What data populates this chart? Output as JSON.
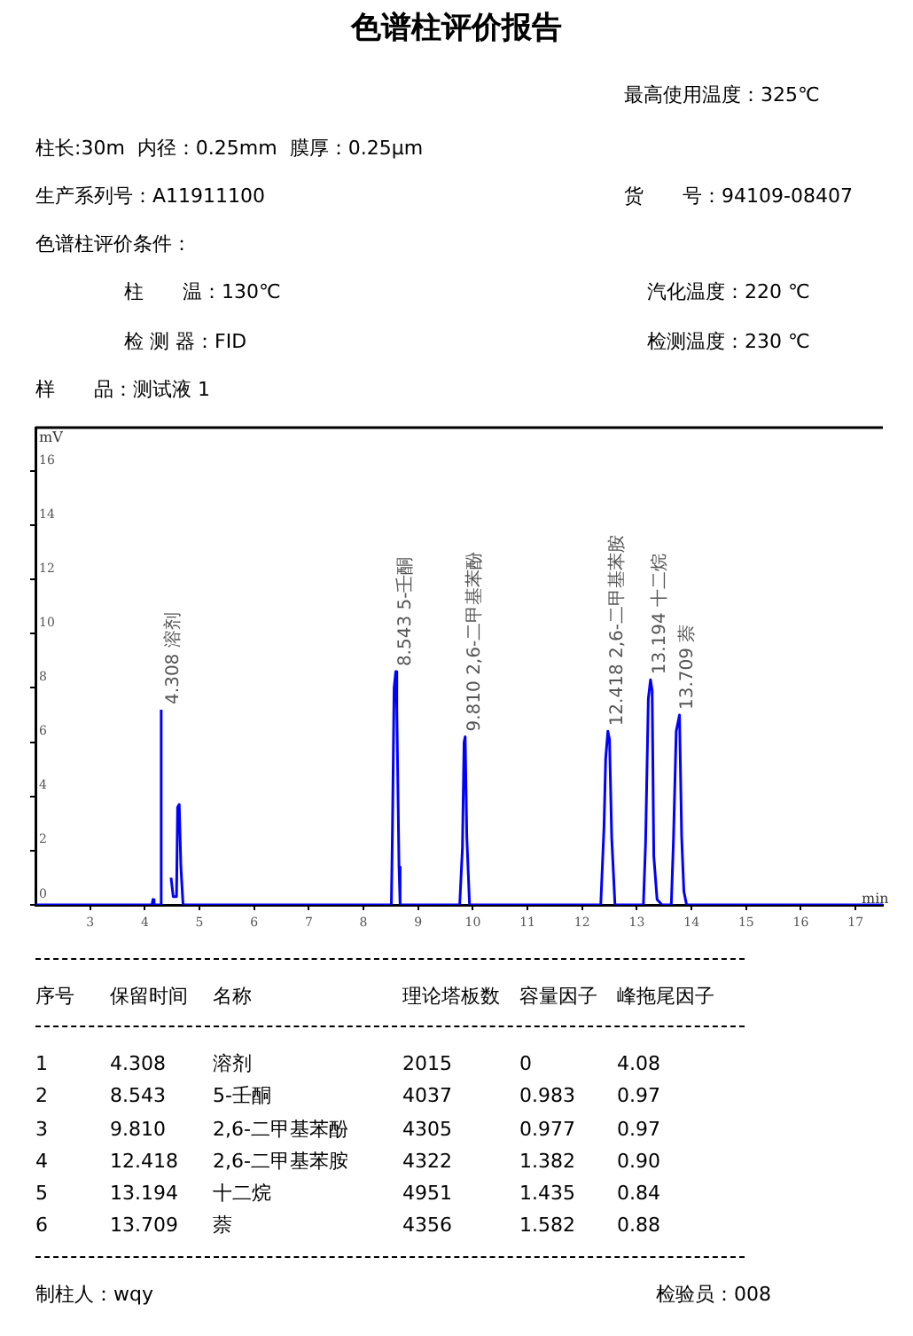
{
  "chart_data": {
    "type": "line",
    "title": "色谱柱评价报告",
    "xlabel": "min",
    "ylabel": "mV",
    "xlim": [
      2,
      17.5
    ],
    "xticks": [
      3,
      4,
      5,
      6,
      7,
      8,
      9,
      10,
      11,
      12,
      13,
      14,
      15,
      16,
      17
    ],
    "ylim": [
      0,
      17.6
    ],
    "yticks": [
      0,
      2,
      4,
      6,
      8,
      10,
      12,
      14,
      16
    ],
    "grid": false,
    "legend": false,
    "marker": "none",
    "line_style": "solid",
    "series": [
      {
        "color": "#0000ff",
        "x": [
          2,
          4.13,
          4.15,
          4.17,
          4.29,
          4.3,
          4.33,
          4.47,
          4.48,
          4.52,
          4.58,
          4.6,
          4.63,
          4.66,
          4.7,
          8.51,
          8.53,
          8.56,
          8.59,
          8.61,
          8.65,
          8.67,
          9.76,
          9.81,
          9.84,
          9.86,
          9.89,
          9.94,
          12.34,
          12.4,
          12.43,
          12.47,
          12.5,
          12.54,
          12.6,
          13.12,
          13.16,
          13.21,
          13.25,
          13.28,
          13.31,
          13.37,
          13.46,
          13.63,
          13.67,
          13.72,
          13.78,
          13.82,
          13.86,
          13.91,
          17.5
        ],
        "values": [
          0,
          0,
          0.2,
          0,
          0,
          7.2,
          null,
          null,
          1.0,
          0.3,
          0.3,
          3.6,
          3.7,
          1.4,
          0,
          0,
          2.8,
          8.0,
          8.6,
          7.2,
          1.4,
          0,
          0,
          2.1,
          6.0,
          6.2,
          2.5,
          0,
          0,
          2.9,
          5.4,
          6.4,
          6.1,
          2.5,
          0,
          0,
          2.3,
          7.6,
          8.3,
          7.9,
          1.8,
          0.2,
          0,
          0,
          2.4,
          6.4,
          7.0,
          2.5,
          0.5,
          0,
          0
        ]
      }
    ],
    "annotations": [
      {
        "text": "4.308 溶剂",
        "x": 4.3,
        "y": 7.2
      },
      {
        "text": "8.543 5-壬酮",
        "x": 8.543,
        "y": 8.6
      },
      {
        "text": "9.810 2,6-二甲基苯酚",
        "x": 9.81,
        "y": 6.2
      },
      {
        "text": "12.418 2,6-二甲基苯胺",
        "x": 12.418,
        "y": 6.4
      },
      {
        "text": "13.194 十二烷",
        "x": 13.194,
        "y": 8.3
      },
      {
        "text": "13.709 萘",
        "x": 13.709,
        "y": 7.0
      },
      "最高使用温度：325℃",
      "柱长:30m  内径：0.25mm  膜厚：0.25μm",
      "生产系列号：A11911100",
      "货　　号：94109-08407",
      "色谱柱评价条件：",
      "柱　　温：130℃",
      "汽化温度：220 ℃",
      "检 测 器：FID",
      "检测温度：230 ℃",
      "样　　品：测试液 1",
      "序号",
      "保留时间",
      "名称",
      "理论塔板数",
      "容量因子",
      "峰拖尾因子",
      "1",
      "4.308",
      "溶剂",
      "2015",
      "0",
      "4.08",
      "2",
      "8.543",
      "5-壬酮",
      "4037",
      "0.983",
      "0.97",
      "3",
      "9.810",
      "2,6-二甲基苯酚",
      "4305",
      "0.977",
      "0.97",
      "4",
      "12.418",
      "2,6-二甲基苯胺",
      "4322",
      "1.382",
      "0.90",
      "5",
      "13.194",
      "十二烷",
      "4951",
      "1.435",
      "0.84",
      "6",
      "13.709",
      "萘",
      "4356",
      "1.582",
      "0.88",
      "制柱人：wqy",
      "检验员：008"
    ]
  }
}
